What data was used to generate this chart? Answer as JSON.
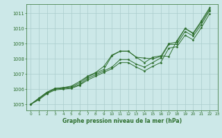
{
  "xlabel": "Graphe pression niveau de la mer (hPa)",
  "bg_color": "#cce8e8",
  "grid_color": "#aacccc",
  "line_color": "#2d6e2d",
  "xlim": [
    -0.5,
    23
  ],
  "ylim": [
    1004.6,
    1011.6
  ],
  "yticks": [
    1005,
    1006,
    1007,
    1008,
    1009,
    1010,
    1011
  ],
  "xticks": [
    0,
    1,
    2,
    3,
    4,
    5,
    6,
    7,
    8,
    9,
    10,
    11,
    12,
    13,
    14,
    15,
    16,
    17,
    18,
    19,
    20,
    21,
    22,
    23
  ],
  "series": [
    [
      1005.0,
      1005.4,
      1005.8,
      1006.05,
      1006.1,
      1006.2,
      1006.5,
      1006.85,
      1007.1,
      1007.5,
      1008.25,
      1008.5,
      1008.5,
      1008.1,
      1007.75,
      1008.1,
      1008.2,
      1008.15,
      1009.2,
      1010.0,
      1009.7,
      1010.5,
      1011.35
    ],
    [
      1005.0,
      1005.4,
      1005.8,
      1006.05,
      1006.1,
      1006.15,
      1006.4,
      1006.8,
      1007.05,
      1007.3,
      1008.2,
      1008.5,
      1008.5,
      1008.1,
      1008.05,
      1008.0,
      1008.15,
      1009.0,
      1009.1,
      1010.0,
      1009.65,
      1010.4,
      1011.25
    ],
    [
      1005.0,
      1005.35,
      1005.75,
      1006.0,
      1006.05,
      1006.1,
      1006.3,
      1006.7,
      1006.95,
      1007.2,
      1007.45,
      1007.95,
      1007.95,
      1007.65,
      1007.45,
      1007.75,
      1008.05,
      1008.95,
      1008.95,
      1009.8,
      1009.5,
      1010.25,
      1011.15
    ],
    [
      1005.0,
      1005.3,
      1005.7,
      1005.95,
      1006.0,
      1006.05,
      1006.25,
      1006.6,
      1006.85,
      1007.1,
      1007.35,
      1007.75,
      1007.75,
      1007.45,
      1007.2,
      1007.5,
      1007.75,
      1008.7,
      1008.8,
      1009.55,
      1009.25,
      1010.05,
      1010.95
    ]
  ]
}
